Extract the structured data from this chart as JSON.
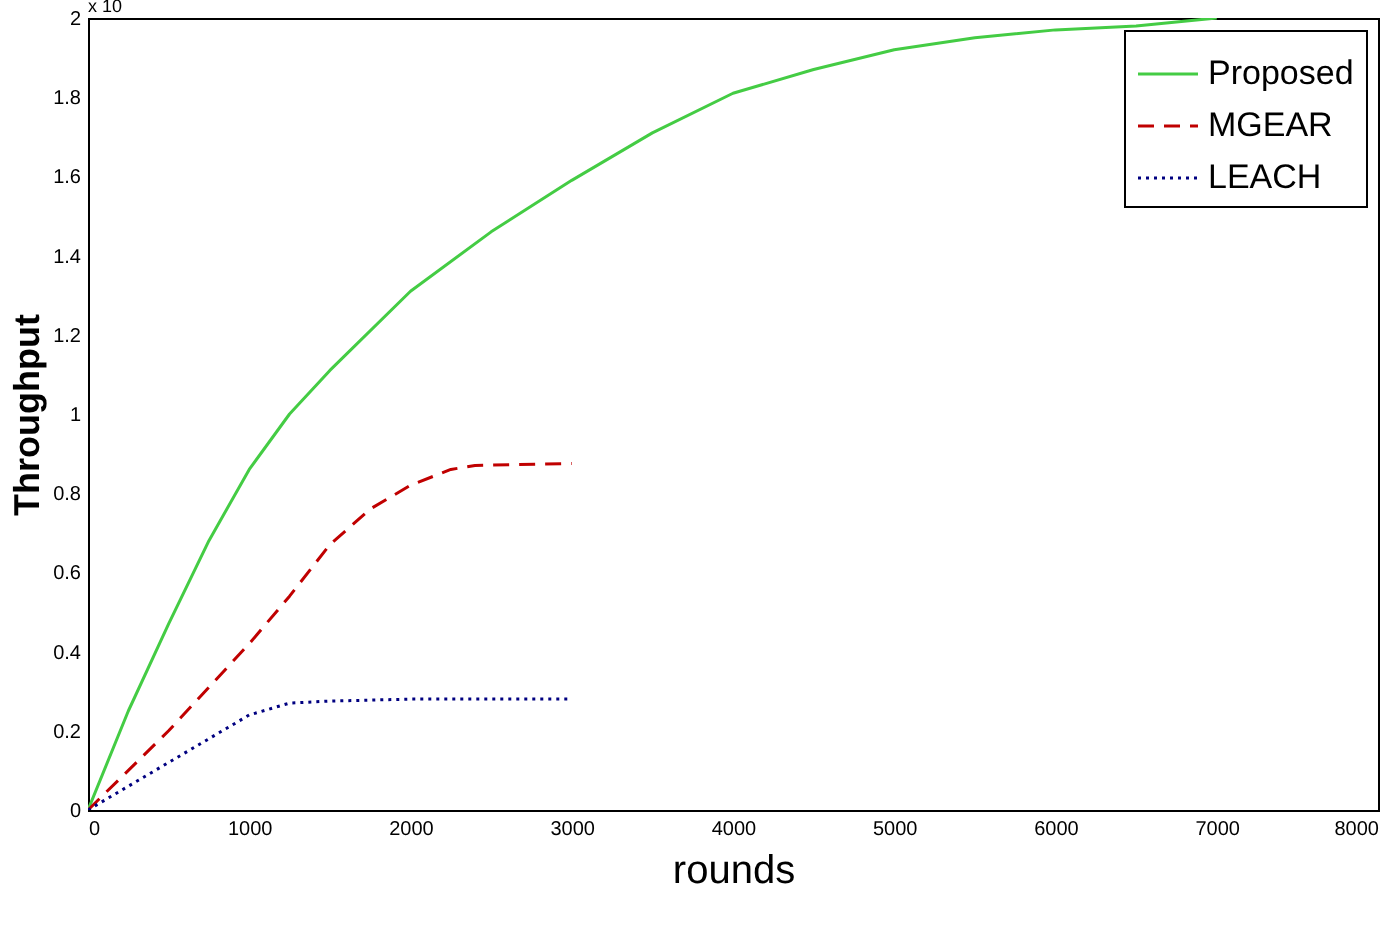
{
  "chart_data": {
    "type": "line",
    "xlabel": "rounds",
    "ylabel": "Throughput",
    "annotations": [
      "x 10"
    ],
    "xlim": [
      0,
      8000
    ],
    "xticks": [
      0,
      1000,
      2000,
      3000,
      4000,
      5000,
      6000,
      7000,
      8000
    ],
    "ylim": [
      0,
      2
    ],
    "yticks": [
      0,
      0.2,
      0.4,
      0.6,
      0.8,
      1,
      1.2,
      1.4,
      1.6,
      1.8,
      2
    ],
    "grid": false,
    "legend": "top right",
    "marker": "none",
    "series": [
      {
        "name": "Proposed",
        "color": "#44cc44",
        "line_style": "solid",
        "x": [
          0,
          250,
          500,
          750,
          1000,
          1250,
          1500,
          2000,
          2500,
          3000,
          3500,
          4000,
          4500,
          5000,
          5500,
          6000,
          6500,
          7000
        ],
        "values": [
          0,
          0.25,
          0.47,
          0.68,
          0.86,
          1.0,
          1.11,
          1.31,
          1.46,
          1.59,
          1.71,
          1.81,
          1.87,
          1.92,
          1.95,
          1.97,
          1.98,
          2.0
        ]
      },
      {
        "name": "MGEAR",
        "color": "#c00000",
        "line_style": "dashed",
        "x": [
          0,
          500,
          1000,
          1250,
          1500,
          1750,
          2000,
          2250,
          2400,
          3000
        ],
        "values": [
          0,
          0.2,
          0.42,
          0.54,
          0.67,
          0.76,
          0.82,
          0.86,
          0.87,
          0.875
        ]
      },
      {
        "name": "LEACH",
        "color": "#000080",
        "line_style": "dotted",
        "x": [
          0,
          500,
          1000,
          1250,
          1500,
          2000,
          3000
        ],
        "values": [
          0,
          0.12,
          0.24,
          0.27,
          0.275,
          0.28,
          0.28
        ]
      }
    ]
  }
}
